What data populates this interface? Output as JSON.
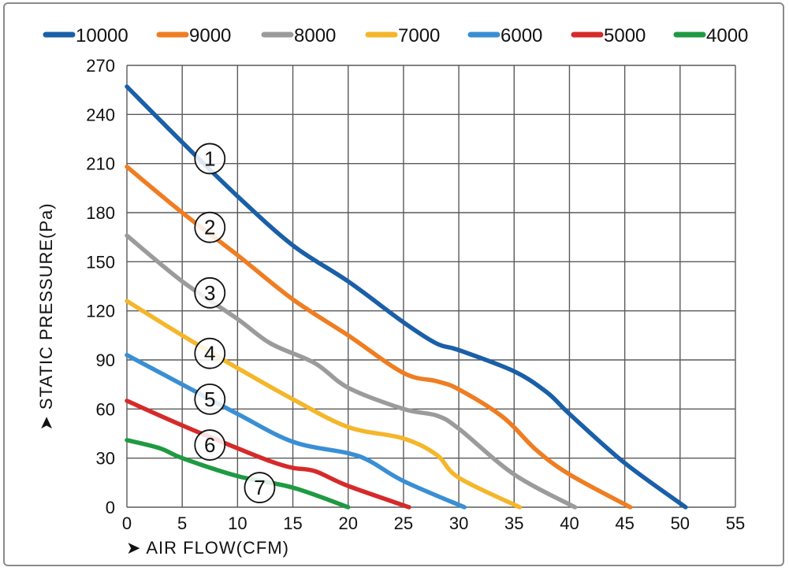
{
  "chart_data": {
    "type": "line",
    "title": "",
    "xlabel": "AIR FLOW(CFM)",
    "ylabel": "STATIC PRESSURE(Pa)",
    "xlim": [
      0,
      55
    ],
    "ylim": [
      0,
      270
    ],
    "x_ticks": [
      "0",
      "5",
      "10",
      "15",
      "20",
      "25",
      "30",
      "35",
      "40",
      "45",
      "50",
      "55"
    ],
    "y_ticks": [
      "0",
      "30",
      "60",
      "90",
      "120",
      "150",
      "180",
      "210",
      "240",
      "270"
    ],
    "grid": true,
    "legend_position": "top",
    "series": [
      {
        "name": "10000",
        "marker": "1",
        "color": "#1a5fa8",
        "points": [
          [
            0,
            257
          ],
          [
            5,
            223
          ],
          [
            10,
            190
          ],
          [
            15,
            160
          ],
          [
            20,
            138
          ],
          [
            25,
            113
          ],
          [
            28,
            100
          ],
          [
            30,
            96
          ],
          [
            35,
            83
          ],
          [
            38,
            70
          ],
          [
            40,
            57
          ],
          [
            45,
            27
          ],
          [
            50.5,
            0
          ]
        ]
      },
      {
        "name": "9000",
        "marker": "2",
        "color": "#ef7d22",
        "points": [
          [
            0,
            208
          ],
          [
            5,
            180
          ],
          [
            10,
            154
          ],
          [
            15,
            127
          ],
          [
            20,
            105
          ],
          [
            25,
            82
          ],
          [
            28,
            77
          ],
          [
            30,
            72
          ],
          [
            34,
            55
          ],
          [
            37,
            35
          ],
          [
            40,
            20
          ],
          [
            45.5,
            0
          ]
        ]
      },
      {
        "name": "8000",
        "marker": "3",
        "color": "#9b9b9b",
        "points": [
          [
            0,
            166
          ],
          [
            5,
            138
          ],
          [
            10,
            115
          ],
          [
            13,
            100
          ],
          [
            17,
            88
          ],
          [
            20,
            73
          ],
          [
            25,
            60
          ],
          [
            28,
            56
          ],
          [
            30,
            48
          ],
          [
            35,
            20
          ],
          [
            40.5,
            0
          ]
        ]
      },
      {
        "name": "7000",
        "marker": "4",
        "color": "#f4b62b",
        "points": [
          [
            0,
            126
          ],
          [
            5,
            105
          ],
          [
            10,
            85
          ],
          [
            15,
            66
          ],
          [
            20,
            49
          ],
          [
            25,
            42
          ],
          [
            28,
            32
          ],
          [
            30,
            18
          ],
          [
            35.5,
            0
          ]
        ]
      },
      {
        "name": "6000",
        "marker": "5",
        "color": "#3a8fd4",
        "points": [
          [
            0,
            93
          ],
          [
            5,
            75
          ],
          [
            10,
            57
          ],
          [
            15,
            40
          ],
          [
            20,
            33
          ],
          [
            22,
            28
          ],
          [
            25,
            16
          ],
          [
            30.5,
            0
          ]
        ]
      },
      {
        "name": "5000",
        "marker": "6",
        "color": "#d62a2a",
        "points": [
          [
            0,
            65
          ],
          [
            5,
            50
          ],
          [
            10,
            36
          ],
          [
            13,
            28
          ],
          [
            15,
            24
          ],
          [
            17,
            22
          ],
          [
            20,
            13
          ],
          [
            25.5,
            0
          ]
        ]
      },
      {
        "name": "4000",
        "marker": "7",
        "color": "#1f9a42",
        "points": [
          [
            0,
            41
          ],
          [
            3,
            36
          ],
          [
            5,
            30
          ],
          [
            10,
            19
          ],
          [
            15,
            12
          ],
          [
            20,
            0
          ]
        ]
      }
    ]
  }
}
